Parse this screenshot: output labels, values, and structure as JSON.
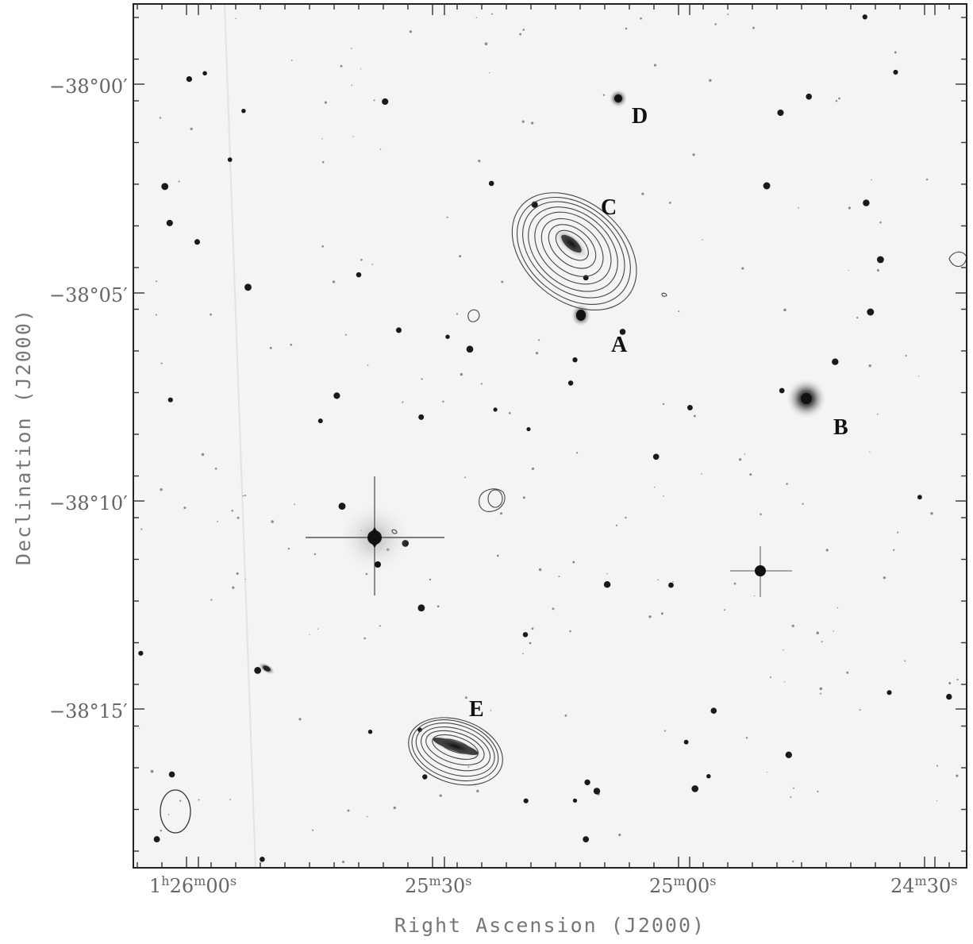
{
  "axes": {
    "xlabel": "Right Ascension (J2000)",
    "ylabel": "Declination (J2000)",
    "x_ticks": [
      {
        "h": "1",
        "hu": "h",
        "m": "26",
        "mu": "m",
        "s": "00",
        "su": "s"
      },
      {
        "h": "",
        "hu": "",
        "m": "25",
        "mu": "m",
        "s": "30",
        "su": "s"
      },
      {
        "h": "",
        "hu": "",
        "m": "25",
        "mu": "m",
        "s": "00",
        "su": "s"
      },
      {
        "h": "",
        "hu": "",
        "m": "24",
        "mu": "m",
        "s": "30",
        "su": "s"
      }
    ],
    "y_ticks": [
      "−38°00′",
      "−38°05′",
      "−38°10′",
      "−38°15′"
    ]
  },
  "sources": [
    {
      "id": "A",
      "label": "A"
    },
    {
      "id": "B",
      "label": "B"
    },
    {
      "id": "C",
      "label": "C"
    },
    {
      "id": "D",
      "label": "D"
    },
    {
      "id": "E",
      "label": "E"
    }
  ],
  "colors": {
    "frame": "#222222",
    "contour": "#444444",
    "stars": "#1a1a1a"
  }
}
